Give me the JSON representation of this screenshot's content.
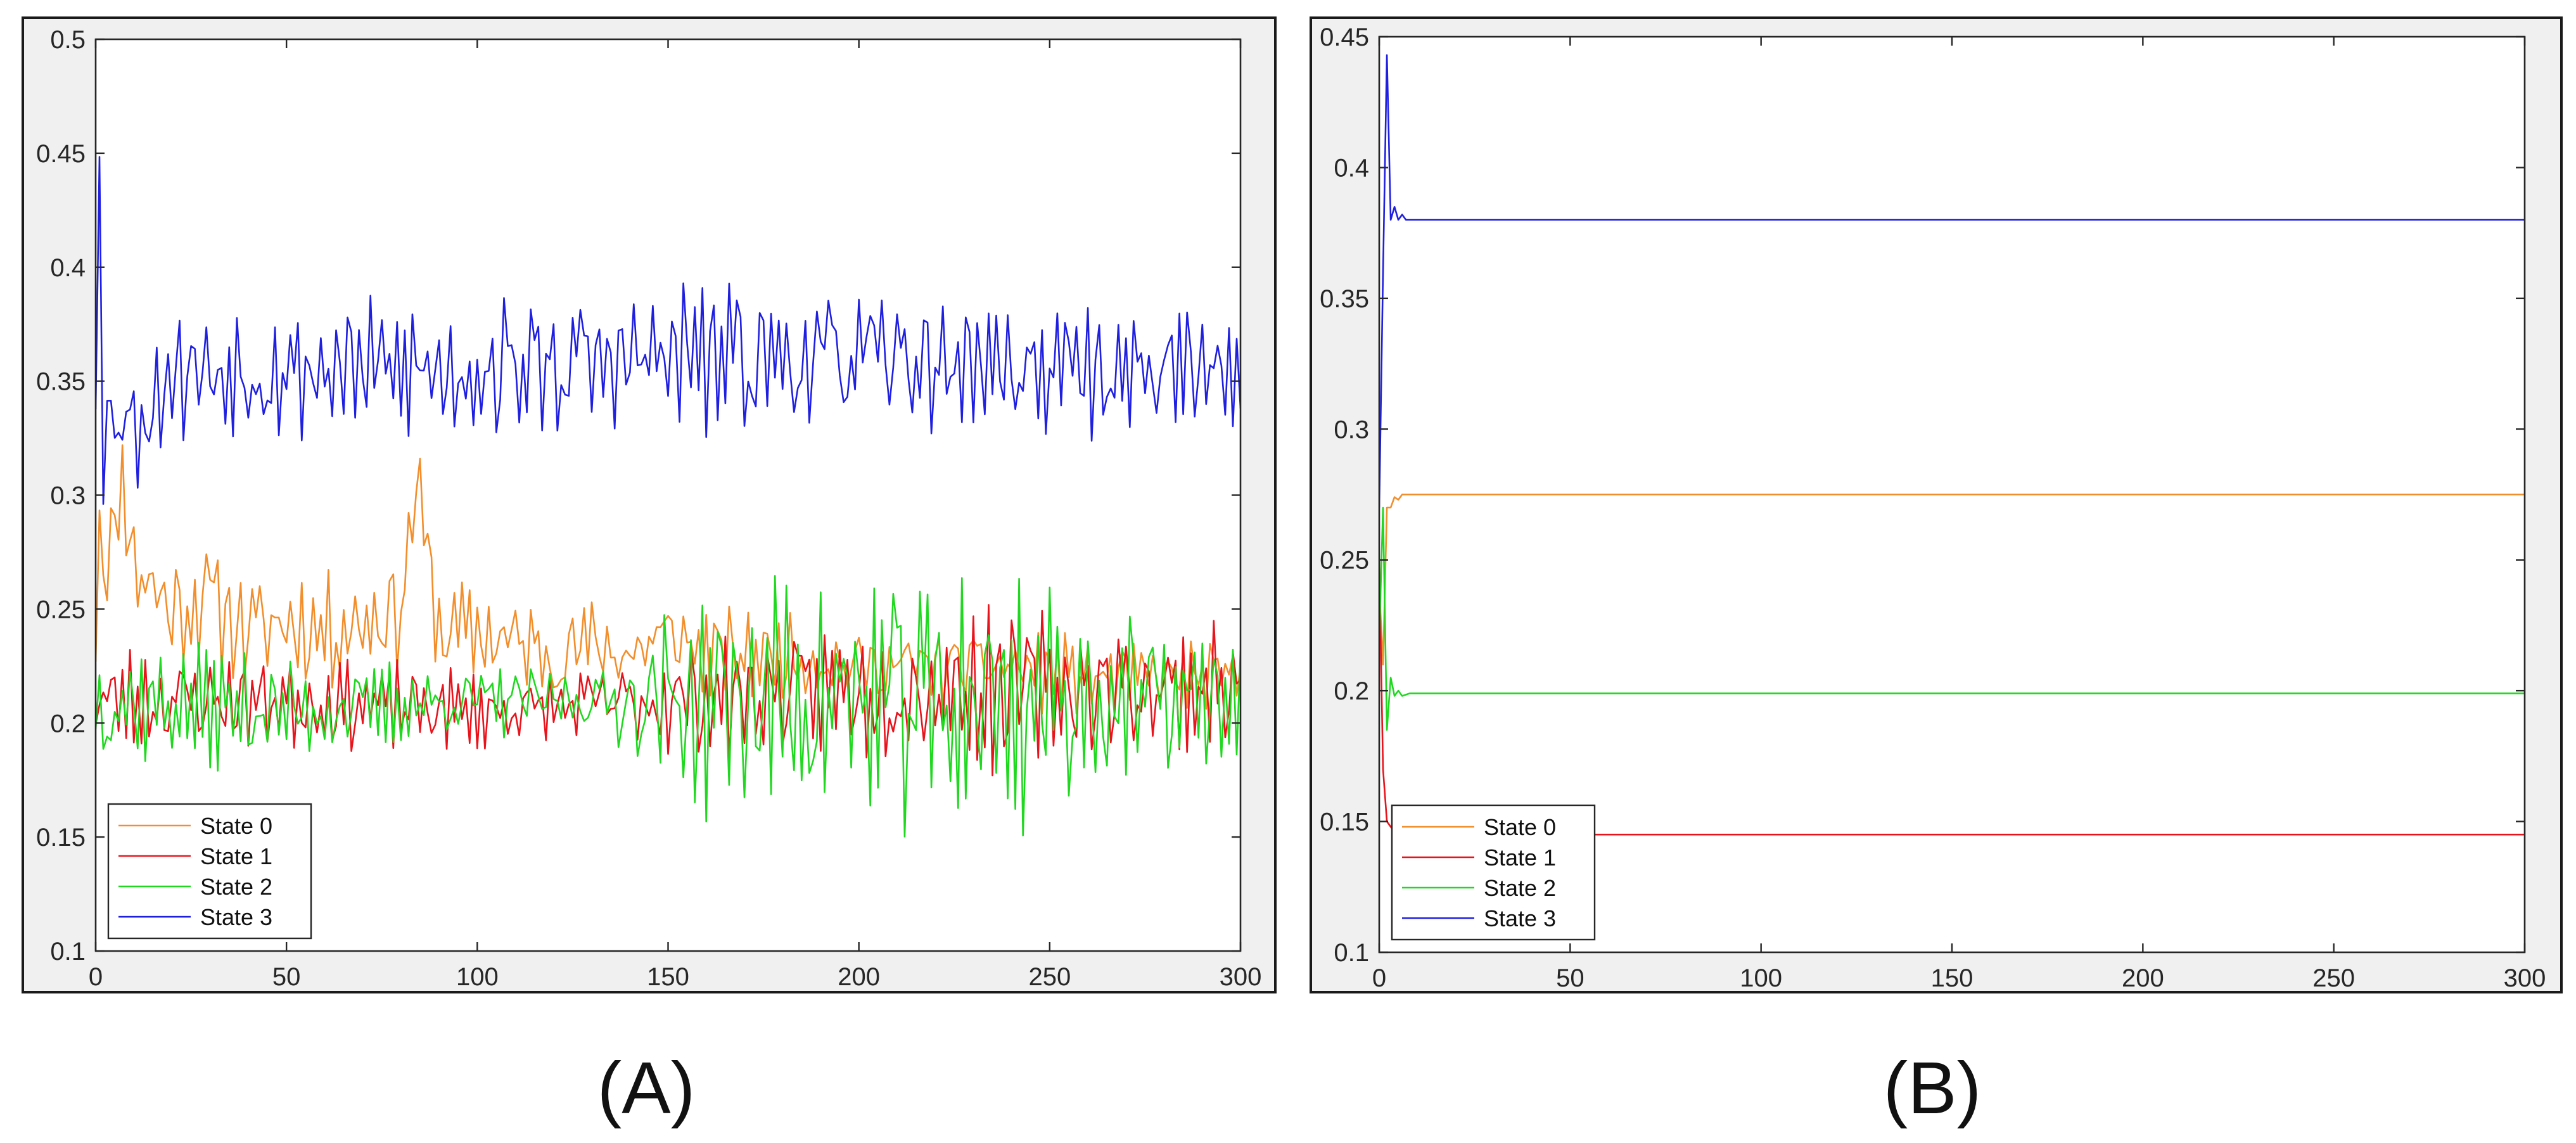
{
  "panels": [
    {
      "label": "(A)",
      "chart_data": {
        "type": "line",
        "title": "",
        "xlabel": "",
        "ylabel": "",
        "xlim": [
          0,
          300
        ],
        "ylim": [
          0.1,
          0.5
        ],
        "xticks": [
          0,
          50,
          100,
          150,
          200,
          250,
          300
        ],
        "yticks": [
          0.1,
          0.15,
          0.2,
          0.25,
          0.3,
          0.35,
          0.4,
          0.45,
          0.5
        ],
        "xtick_labels": [
          "0",
          "50",
          "100",
          "150",
          "200",
          "250",
          "300"
        ],
        "ytick_labels": [
          "0.1",
          "0.15",
          "0.2",
          "0.25",
          "0.3",
          "0.35",
          "0.4",
          "0.45",
          "0.5"
        ],
        "grid": false,
        "legend_position": "bottom-left",
        "series": [
          {
            "name": "State 0",
            "color": "#f28e2b",
            "keypoints": [
              [
                0,
                0.24
              ],
              [
                1,
                0.3
              ],
              [
                2,
                0.27
              ],
              [
                5,
                0.28
              ],
              [
                6,
                0.305
              ],
              [
                8,
                0.3
              ],
              [
                10,
                0.27
              ],
              [
                15,
                0.26
              ],
              [
                20,
                0.25
              ],
              [
                30,
                0.255
              ],
              [
                40,
                0.24
              ],
              [
                50,
                0.245
              ],
              [
                60,
                0.24
              ],
              [
                70,
                0.245
              ],
              [
                80,
                0.25
              ],
              [
                84,
                0.305
              ],
              [
                90,
                0.24
              ],
              [
                100,
                0.24
              ],
              [
                110,
                0.235
              ],
              [
                120,
                0.23
              ],
              [
                130,
                0.235
              ],
              [
                140,
                0.23
              ],
              [
                150,
                0.24
              ],
              [
                160,
                0.23
              ],
              [
                180,
                0.23
              ],
              [
                200,
                0.225
              ],
              [
                220,
                0.225
              ],
              [
                240,
                0.225
              ],
              [
                260,
                0.22
              ],
              [
                280,
                0.22
              ],
              [
                300,
                0.22
              ]
            ],
            "noise": [
              [
                0,
                0.03
              ],
              [
                100,
                0.025
              ],
              [
                150,
                0.02
              ],
              [
                300,
                0.015
              ]
            ],
            "seed": 11
          },
          {
            "name": "State 1",
            "color": "#e8131b",
            "keypoints": [
              [
                0,
                0.21
              ],
              [
                50,
                0.21
              ],
              [
                100,
                0.205
              ],
              [
                150,
                0.21
              ],
              [
                200,
                0.215
              ],
              [
                250,
                0.215
              ],
              [
                300,
                0.215
              ]
            ],
            "noise": [
              [
                0,
                0.025
              ],
              [
                120,
                0.015
              ],
              [
                150,
                0.025
              ],
              [
                230,
                0.035
              ],
              [
                300,
                0.025
              ]
            ],
            "seed": 23
          },
          {
            "name": "State 2",
            "color": "#1fd81f",
            "keypoints": [
              [
                0,
                0.21
              ],
              [
                50,
                0.205
              ],
              [
                100,
                0.21
              ],
              [
                150,
                0.21
              ],
              [
                200,
                0.21
              ],
              [
                250,
                0.21
              ],
              [
                300,
                0.21
              ]
            ],
            "noise": [
              [
                0,
                0.03
              ],
              [
                100,
                0.015
              ],
              [
                130,
                0.015
              ],
              [
                160,
                0.05
              ],
              [
                230,
                0.065
              ],
              [
                260,
                0.045
              ],
              [
                300,
                0.025
              ]
            ],
            "seed": 37
          },
          {
            "name": "State 3",
            "color": "#1f1fe0",
            "keypoints": [
              [
                0,
                0.35
              ],
              [
                1,
                0.465
              ],
              [
                2,
                0.31
              ],
              [
                3,
                0.33
              ],
              [
                5,
                0.34
              ],
              [
                10,
                0.33
              ],
              [
                20,
                0.355
              ],
              [
                50,
                0.355
              ],
              [
                100,
                0.355
              ],
              [
                150,
                0.36
              ],
              [
                200,
                0.36
              ],
              [
                250,
                0.355
              ],
              [
                300,
                0.355
              ]
            ],
            "noise": [
              [
                0,
                0.03
              ],
              [
                150,
                0.035
              ],
              [
                300,
                0.025
              ]
            ],
            "seed": 53
          }
        ]
      }
    },
    {
      "label": "(B)",
      "chart_data": {
        "type": "line",
        "title": "",
        "xlabel": "",
        "ylabel": "",
        "xlim": [
          0,
          300
        ],
        "ylim": [
          0.1,
          0.45
        ],
        "xticks": [
          0,
          50,
          100,
          150,
          200,
          250,
          300
        ],
        "yticks": [
          0.1,
          0.15,
          0.2,
          0.25,
          0.3,
          0.35,
          0.4,
          0.45
        ],
        "xtick_labels": [
          "0",
          "50",
          "100",
          "150",
          "200",
          "250",
          "300"
        ],
        "ytick_labels": [
          "0.1",
          "0.15",
          "0.2",
          "0.25",
          "0.3",
          "0.35",
          "0.4",
          "0.45"
        ],
        "grid": false,
        "legend_position": "bottom-left",
        "series": [
          {
            "name": "State 0",
            "color": "#f28e2b",
            "points": [
              [
                0,
                0.24
              ],
              [
                1,
                0.21
              ],
              [
                2,
                0.27
              ],
              [
                3,
                0.27
              ],
              [
                4,
                0.274
              ],
              [
                5,
                0.273
              ],
              [
                6,
                0.275
              ],
              [
                8,
                0.275
              ],
              [
                300,
                0.275
              ]
            ]
          },
          {
            "name": "State 1",
            "color": "#e8131b",
            "points": [
              [
                0,
                0.25
              ],
              [
                1,
                0.17
              ],
              [
                2,
                0.15
              ],
              [
                3,
                0.148
              ],
              [
                4,
                0.146
              ],
              [
                5,
                0.145
              ],
              [
                6,
                0.145
              ],
              [
                300,
                0.145
              ]
            ]
          },
          {
            "name": "State 2",
            "color": "#1fd81f",
            "points": [
              [
                0,
                0.22
              ],
              [
                1,
                0.27
              ],
              [
                2,
                0.185
              ],
              [
                3,
                0.205
              ],
              [
                4,
                0.198
              ],
              [
                5,
                0.2
              ],
              [
                6,
                0.198
              ],
              [
                8,
                0.199
              ],
              [
                300,
                0.199
              ]
            ]
          },
          {
            "name": "State 3",
            "color": "#1f1fe0",
            "points": [
              [
                0,
                0.27
              ],
              [
                1,
                0.36
              ],
              [
                2,
                0.443
              ],
              [
                3,
                0.38
              ],
              [
                4,
                0.385
              ],
              [
                5,
                0.38
              ],
              [
                6,
                0.382
              ],
              [
                7,
                0.38
              ],
              [
                300,
                0.38
              ]
            ]
          }
        ]
      }
    }
  ]
}
